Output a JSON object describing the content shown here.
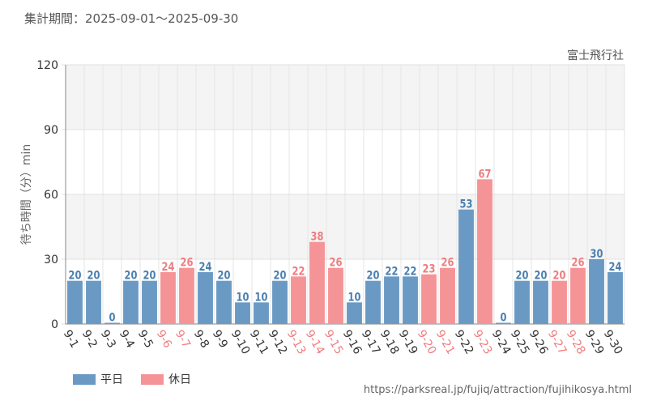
{
  "header": {
    "period": "集計期間：2025-09-01～2025-09-30",
    "attraction": "富士飛行社"
  },
  "legend": {
    "weekday": "平日",
    "holiday": "休日"
  },
  "footer": {
    "url": "https://parksreal.jp/fujiq/attraction/fujihikosya.html"
  },
  "colors": {
    "weekday": "#6a9ac4",
    "holiday": "#f59496",
    "weekday_text": "#4a7fb0",
    "holiday_text": "#ee7d80"
  },
  "chart_data": {
    "type": "bar",
    "title": "",
    "xlabel": "",
    "ylabel": "待ち時間（分）min",
    "ylim": [
      0,
      120
    ],
    "yticks": [
      0,
      30,
      60,
      90,
      120
    ],
    "categories": [
      "9-1",
      "9-2",
      "9-3",
      "9-4",
      "9-5",
      "9-6",
      "9-7",
      "9-8",
      "9-9",
      "9-10",
      "9-11",
      "9-12",
      "9-13",
      "9-14",
      "9-15",
      "9-16",
      "9-17",
      "9-18",
      "9-19",
      "9-20",
      "9-21",
      "9-22",
      "9-23",
      "9-24",
      "9-25",
      "9-26",
      "9-27",
      "9-28",
      "9-29",
      "9-30"
    ],
    "values": [
      20,
      20,
      0,
      20,
      20,
      24,
      26,
      24,
      20,
      10,
      10,
      20,
      22,
      38,
      26,
      10,
      20,
      22,
      22,
      23,
      26,
      53,
      67,
      0,
      20,
      20,
      20,
      26,
      30,
      24
    ],
    "day_type": [
      "平日",
      "平日",
      "平日",
      "平日",
      "平日",
      "休日",
      "休日",
      "平日",
      "平日",
      "平日",
      "平日",
      "平日",
      "休日",
      "休日",
      "休日",
      "平日",
      "平日",
      "平日",
      "平日",
      "休日",
      "休日",
      "平日",
      "休日",
      "平日",
      "平日",
      "平日",
      "休日",
      "休日",
      "平日",
      "平日"
    ]
  }
}
